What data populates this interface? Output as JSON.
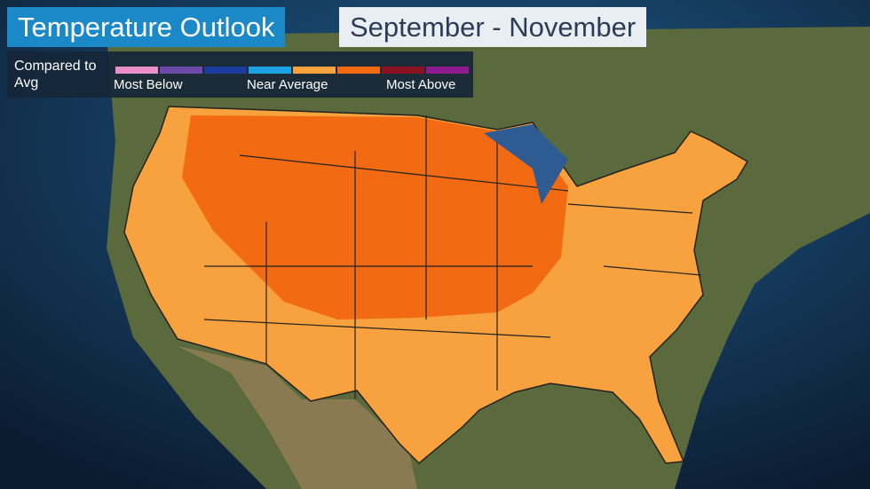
{
  "header": {
    "title": "Temperature Outlook",
    "subtitle": "September - November"
  },
  "legend": {
    "caption": "Compared to Avg",
    "labels": [
      "Most Below",
      "Near Average",
      "Most Above"
    ],
    "colors": [
      "#e98fc9",
      "#6b4aa9",
      "#1b3c9c",
      "#1ba3e3",
      "#f7a13f",
      "#f26b12",
      "#8b1222",
      "#8e1b8e"
    ]
  }
}
